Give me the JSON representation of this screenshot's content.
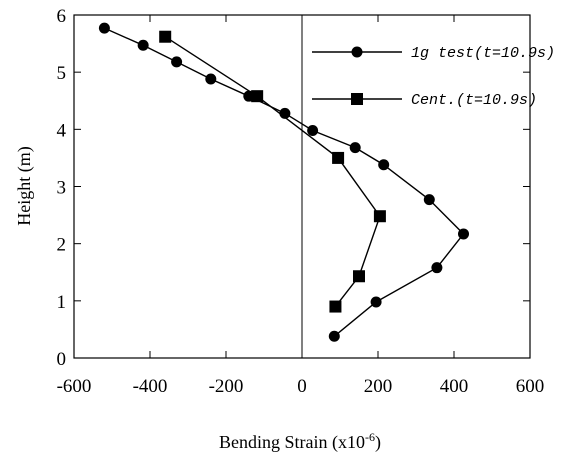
{
  "chart_data": {
    "type": "line",
    "xlabel": "Bending Strain (x10",
    "xlabel_superscript": "-6",
    "xlabel_suffix": ")",
    "ylabel": "Height (m)",
    "xlim": [
      -600,
      600
    ],
    "ylim": [
      0,
      6
    ],
    "xticks": [
      -600,
      -400,
      -200,
      0,
      200,
      400,
      600
    ],
    "yticks": [
      0,
      1,
      2,
      3,
      4,
      5,
      6
    ],
    "grid": false,
    "legend_position": "top-right",
    "series": [
      {
        "name": "1g test(t=10.9s)",
        "marker": "circle",
        "color": "#000000",
        "points": [
          {
            "x": -520,
            "y": 5.77
          },
          {
            "x": -418,
            "y": 5.47
          },
          {
            "x": -330,
            "y": 5.18
          },
          {
            "x": -240,
            "y": 4.88
          },
          {
            "x": -140,
            "y": 4.58
          },
          {
            "x": -45,
            "y": 4.28
          },
          {
            "x": 28,
            "y": 3.98
          },
          {
            "x": 140,
            "y": 3.68
          },
          {
            "x": 215,
            "y": 3.38
          },
          {
            "x": 335,
            "y": 2.77
          },
          {
            "x": 425,
            "y": 2.17
          },
          {
            "x": 355,
            "y": 1.58
          },
          {
            "x": 195,
            "y": 0.98
          },
          {
            "x": 85,
            "y": 0.38
          }
        ]
      },
      {
        "name": "Cent.(t=10.9s)",
        "marker": "square",
        "color": "#000000",
        "points": [
          {
            "x": -360,
            "y": 5.62
          },
          {
            "x": -118,
            "y": 4.58
          },
          {
            "x": 95,
            "y": 3.5
          },
          {
            "x": 205,
            "y": 2.48
          },
          {
            "x": 150,
            "y": 1.43
          },
          {
            "x": 88,
            "y": 0.9
          }
        ]
      }
    ]
  }
}
